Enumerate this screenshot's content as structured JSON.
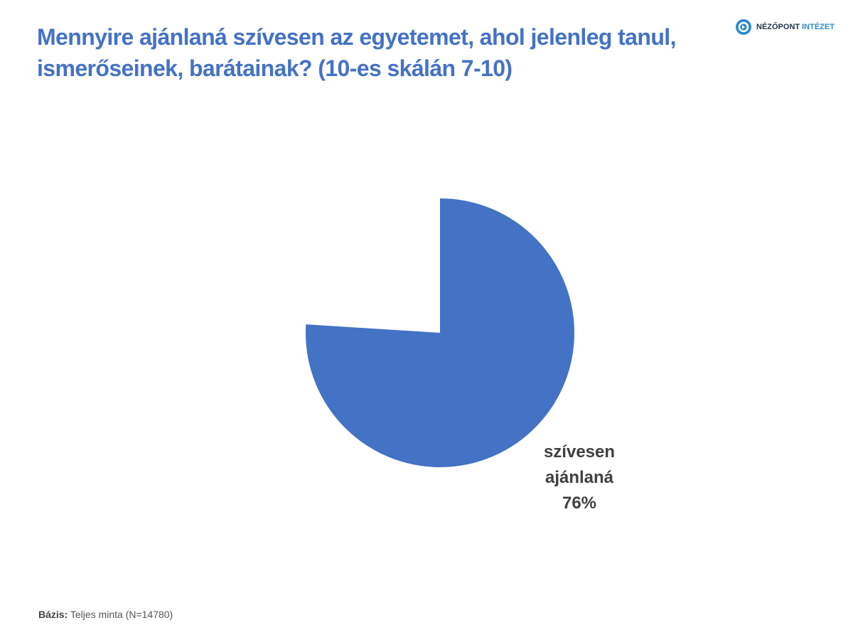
{
  "chart_data": {
    "type": "pie",
    "title": "Mennyire ajánlaná szívesen az egyetemet, ahol jelenleg tanul, ismerőseinek, barátainak? (10-es skálán 7-10)",
    "categories": [
      "szívesen ajánlaná"
    ],
    "values": [
      76
    ],
    "value_labels": [
      "76%"
    ],
    "color": "#4472c4"
  },
  "logo": {
    "name": "NÉZŐPONT",
    "suffix": "INTÉZET"
  },
  "footer": {
    "label": "Bázis:",
    "text": "Teljes minta (N=14780)"
  }
}
